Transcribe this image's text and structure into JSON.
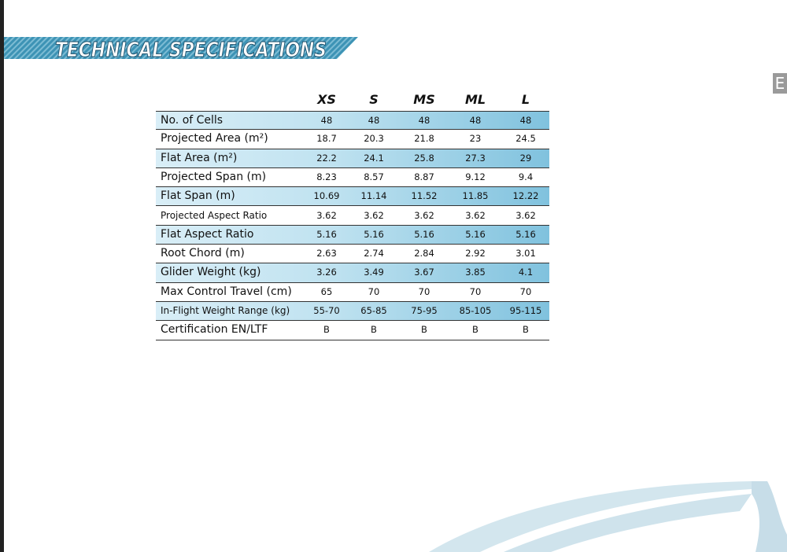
{
  "header": {
    "title": "TECHNICAL SPECIFICATIONS",
    "side_tab": "E"
  },
  "table": {
    "columns": [
      "XS",
      "S",
      "MS",
      "ML",
      "L"
    ],
    "rows": [
      [
        "No. of Cells",
        "48",
        "48",
        "48",
        "48",
        "48"
      ],
      [
        "Projected Area (m²)",
        "18.7",
        "20.3",
        "21.8",
        "23",
        "24.5"
      ],
      [
        "Flat Area (m²)",
        "22.2",
        "24.1",
        "25.8",
        "27.3",
        "29"
      ],
      [
        "Projected Span (m)",
        "8.23",
        "8.57",
        "8.87",
        "9.12",
        "9.4"
      ],
      [
        "Flat Span (m)",
        "10.69",
        "11.14",
        "11.52",
        "11.85",
        "12.22"
      ],
      [
        "Projected Aspect Ratio",
        "3.62",
        "3.62",
        "3.62",
        "3.62",
        "3.62"
      ],
      [
        "Flat Aspect Ratio",
        "5.16",
        "5.16",
        "5.16",
        "5.16",
        "5.16"
      ],
      [
        "Root Chord (m)",
        "2.63",
        "2.74",
        "2.84",
        "2.92",
        "3.01"
      ],
      [
        "Glider Weight (kg)",
        "3.26",
        "3.49",
        "3.67",
        "3.85",
        "4.1"
      ],
      [
        "Max Control Travel (cm)",
        "65",
        "70",
        "70",
        "70",
        "70"
      ],
      [
        "In-Flight Weight Range (kg)",
        "55-70",
        "65-85",
        "75-95",
        "85-105",
        "95-115"
      ],
      [
        "Certification EN/LTF",
        "B",
        "B",
        "B",
        "B",
        "B"
      ]
    ]
  }
}
